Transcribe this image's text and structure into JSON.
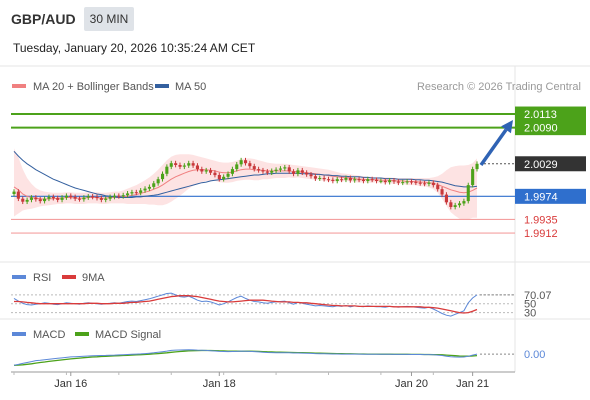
{
  "header": {
    "symbol": "GBP/AUD",
    "timeframe": "30 MIN",
    "datetime": "Tuesday, January 20, 2026 10:35:24 AM CET"
  },
  "legend": {
    "ma20_label": "MA 20 + Bollinger Bands",
    "ma50_label": "MA 50",
    "credit": "Research © 2026 Trading Central",
    "rsi_label": "RSI",
    "rsi_ma_label": "9MA",
    "macd_label": "MACD",
    "macd_signal_label": "MACD Signal"
  },
  "colors": {
    "ma20": "#f08080",
    "bollinger_fill": "#fde0e0",
    "ma50": "#34609f",
    "resistance": "#4ca21a",
    "support": "#f4a0a0",
    "pivot": "#2f6fcd",
    "arrow": "#2f63b4",
    "current": "#333333",
    "candle_up": "#4ca21a",
    "candle_down": "#c8383b",
    "rsi": "#5c88d8",
    "rsi_ma": "#d93b3b",
    "macd": "#5c88d8",
    "macd_signal": "#4ca21a"
  },
  "chart_data": [
    {
      "type": "candlestick",
      "x_axis": {
        "tick_labels": [
          "Jan 16",
          "Jan 18",
          "Jan 20",
          "Jan 21"
        ]
      },
      "y_range": [
        1.988,
        2.0135
      ],
      "levels": [
        {
          "role": "resistance",
          "value": 2.0113,
          "label": "2.0113"
        },
        {
          "role": "resistance",
          "value": 2.009,
          "label": "2.0090"
        },
        {
          "role": "current",
          "value": 2.0029,
          "label": "2.0029"
        },
        {
          "role": "pivot",
          "value": 1.9974,
          "label": "1.9974"
        },
        {
          "role": "support",
          "value": 1.9935,
          "label": "1.9935"
        },
        {
          "role": "support",
          "value": 1.9912,
          "label": "1.9912"
        }
      ],
      "arrow": {
        "from": 2.0027,
        "to": 2.0103
      },
      "closes": [
        1.9982,
        1.997,
        1.9965,
        1.9968,
        1.9972,
        1.9969,
        1.9966,
        1.997,
        1.9973,
        1.9971,
        1.9968,
        1.9972,
        1.9975,
        1.9973,
        1.997,
        1.9969,
        1.9972,
        1.9974,
        1.9973,
        1.9971,
        1.9968,
        1.997,
        1.9973,
        1.9975,
        1.9974,
        1.9976,
        1.9979,
        1.9981,
        1.998,
        1.9984,
        1.9987,
        1.999,
        1.9996,
        2.0003,
        2.0012,
        2.0024,
        2.003,
        2.0027,
        2.0024,
        2.0026,
        2.003,
        2.0026,
        2.002,
        2.0016,
        2.0018,
        2.0014,
        2.001,
        2.0003,
        2.0007,
        2.0012,
        2.002,
        2.0028,
        2.0035,
        2.003,
        2.0025,
        2.002,
        2.0018,
        2.0016,
        2.0014,
        2.0017,
        2.0019,
        2.0021,
        2.0023,
        2.0016,
        2.0012,
        2.0018,
        2.0014,
        2.0011,
        2.0008,
        2.0004,
        2.0005,
        2.0003,
        2.0002,
        2.0,
        2.0003,
        2.0002,
        2.0005,
        2.0001,
        2.0003,
        2.0002,
        2.0,
        2.0003,
        2.0002,
        2.0,
        2.0,
        1.9998,
        2.0001,
        1.9999,
        1.9997,
        1.9998,
        1.9999,
        1.9998,
        1.9997,
        1.9996,
        1.9995,
        1.9997,
        1.9993,
        1.9986,
        1.9977,
        1.9964,
        1.9956,
        1.9959,
        1.9962,
        1.9966,
        1.9993,
        2.002,
        2.0029
      ],
      "ma20": [
        1.999,
        1.9985,
        1.9978,
        1.9974,
        1.9972,
        1.9971,
        1.997,
        1.9969,
        1.997,
        1.997,
        1.9971,
        1.9971,
        1.9972,
        1.9972,
        1.9971,
        1.9971,
        1.9971,
        1.9972,
        1.9972,
        1.9972,
        1.9971,
        1.9971,
        1.9972,
        1.9972,
        1.9972,
        1.9973,
        1.9974,
        1.9976,
        1.9977,
        1.9979,
        1.9981,
        1.9983,
        1.9986,
        1.9989,
        1.9993,
        1.9998,
        2.0003,
        2.0007,
        2.001,
        2.0013,
        2.0016,
        2.0018,
        2.0019,
        2.0019,
        2.0019,
        2.0018,
        2.0017,
        2.0015,
        2.0014,
        2.0014,
        2.0015,
        2.0017,
        2.0019,
        2.002,
        2.002,
        2.0019,
        2.0018,
        2.0018,
        2.0017,
        2.0017,
        2.0017,
        2.0017,
        2.0017,
        2.0017,
        2.0016,
        2.0016,
        2.0015,
        2.0014,
        2.0013,
        2.0012,
        2.0011,
        2.001,
        2.0009,
        2.0008,
        2.0007,
        2.0006,
        2.0006,
        2.0005,
        2.0004,
        2.0003,
        2.0003,
        2.0002,
        2.0002,
        2.0002,
        2.0001,
        2.0001,
        2.0001,
        2.0,
        2.0,
        2.0,
        1.9999,
        1.9999,
        1.9999,
        1.9998,
        1.9998,
        1.9997,
        1.9996,
        1.9994,
        1.9991,
        1.9988,
        1.9985,
        1.9983,
        1.9981,
        1.998,
        1.9981,
        1.9984,
        1.9988
      ],
      "bollinger_upper": [
        2.0055,
        2.004,
        2.002,
        2.0005,
        1.9995,
        1.9988,
        1.9984,
        1.9982,
        1.9981,
        1.998,
        1.998,
        1.998,
        1.9981,
        1.9981,
        1.998,
        1.998,
        1.998,
        1.9981,
        1.9981,
        1.9981,
        1.998,
        1.998,
        1.9981,
        1.9982,
        1.9982,
        1.9984,
        1.9987,
        1.999,
        1.9993,
        1.9997,
        2.0001,
        2.0006,
        2.0012,
        2.0019,
        2.0027,
        2.0035,
        2.0041,
        2.0044,
        2.0045,
        2.0045,
        2.0045,
        2.0044,
        2.0042,
        2.004,
        2.0038,
        2.0036,
        2.0034,
        2.0032,
        2.0031,
        2.0031,
        2.0032,
        2.0034,
        2.0037,
        2.0038,
        2.0038,
        2.0037,
        2.0035,
        2.0033,
        2.0031,
        2.003,
        2.0029,
        2.0029,
        2.0029,
        2.0028,
        2.0027,
        2.0026,
        2.0025,
        2.0024,
        2.0023,
        2.0022,
        2.0021,
        2.002,
        2.0019,
        2.0017,
        2.0015,
        2.0013,
        2.0012,
        2.0011,
        2.001,
        2.0009,
        2.0008,
        2.0007,
        2.0007,
        2.0006,
        2.0006,
        2.0006,
        2.0006,
        2.0005,
        2.0005,
        2.0005,
        2.0005,
        2.0005,
        2.0005,
        2.0005,
        2.0005,
        2.0005,
        2.0006,
        2.0008,
        2.0012,
        2.0018,
        2.0023,
        2.0025,
        2.0026,
        2.0026,
        2.0027,
        2.003,
        2.0038
      ],
      "bollinger_lower": [
        1.994,
        1.9945,
        1.995,
        1.9952,
        1.9953,
        1.9955,
        1.9957,
        1.9958,
        1.9959,
        1.996,
        1.9961,
        1.9961,
        1.9962,
        1.9962,
        1.9961,
        1.9961,
        1.9961,
        1.9962,
        1.9962,
        1.9962,
        1.9961,
        1.9961,
        1.9962,
        1.9962,
        1.9962,
        1.9962,
        1.9961,
        1.9961,
        1.9961,
        1.9961,
        1.9961,
        1.996,
        1.996,
        1.9959,
        1.9959,
        1.9961,
        1.9965,
        1.997,
        1.9975,
        1.9981,
        1.9987,
        1.9992,
        1.9996,
        1.9998,
        2.0,
        2.0,
        2.0,
        1.9998,
        1.9997,
        1.9997,
        1.9998,
        2.0,
        2.0001,
        2.0002,
        2.0002,
        2.0001,
        2.0001,
        2.0003,
        2.0003,
        2.0004,
        2.0005,
        2.0005,
        2.0005,
        2.0006,
        2.0005,
        2.0006,
        2.0005,
        2.0004,
        2.0003,
        2.0002,
        2.0001,
        2.0,
        1.9999,
        1.9999,
        1.9999,
        1.9999,
        2.0,
        1.9999,
        1.9998,
        1.9997,
        1.9998,
        1.9997,
        1.9997,
        1.9998,
        1.9996,
        1.9996,
        1.9996,
        1.9995,
        1.9995,
        1.9995,
        1.9993,
        1.9993,
        1.9993,
        1.9991,
        1.9991,
        1.9989,
        1.9986,
        1.998,
        1.997,
        1.9958,
        1.9947,
        1.9941,
        1.9936,
        1.9934,
        1.9935,
        1.9938,
        1.9938
      ],
      "ma50": [
        2.005,
        2.0042,
        2.0035,
        2.0029,
        2.0024,
        2.0019,
        2.0015,
        2.0011,
        2.0007,
        2.0003,
        2.0,
        1.9997,
        1.9994,
        1.9991,
        1.9988,
        1.9986,
        1.9984,
        1.9982,
        1.998,
        1.9978,
        1.9977,
        1.9975,
        1.9974,
        1.9973,
        1.9972,
        1.9972,
        1.9972,
        1.9972,
        1.9973,
        1.9973,
        1.9974,
        1.9975,
        1.9976,
        1.9977,
        1.9979,
        1.9981,
        1.9983,
        1.9985,
        1.9987,
        1.9989,
        1.9991,
        1.9993,
        1.9995,
        1.9997,
        1.9998,
        2.0,
        2.0001,
        2.0002,
        2.0003,
        2.0004,
        2.0005,
        2.0006,
        2.0007,
        2.0008,
        2.0009,
        2.001,
        2.001,
        2.0011,
        2.0012,
        2.0012,
        2.0013,
        2.0013,
        2.0013,
        2.0013,
        2.0013,
        2.0013,
        2.0012,
        2.0012,
        2.0012,
        2.0011,
        2.0011,
        2.001,
        2.001,
        2.0009,
        2.0009,
        2.0008,
        2.0008,
        2.0007,
        2.0007,
        2.0007,
        2.0006,
        2.0006,
        2.0005,
        2.0005,
        2.0005,
        2.0004,
        2.0004,
        2.0004,
        2.0003,
        2.0003,
        2.0003,
        2.0003,
        2.0002,
        2.0002,
        2.0001,
        2.0001,
        2.0,
        1.9999,
        1.9998,
        1.9996,
        1.9994,
        1.9992,
        1.9991,
        1.999,
        1.999,
        1.999,
        1.9991
      ]
    },
    {
      "type": "line",
      "name": "RSI",
      "y_range": [
        20,
        90
      ],
      "tick_labels": [
        "70.07",
        "50",
        "30"
      ],
      "reference_lines": [
        70,
        50,
        30
      ],
      "rsi": [
        62,
        56,
        51,
        48,
        47,
        49,
        50,
        52,
        51,
        49,
        48,
        50,
        52,
        51,
        50,
        49,
        51,
        52,
        51,
        50,
        49,
        50,
        51,
        52,
        51,
        53,
        55,
        56,
        55,
        57,
        59,
        61,
        64,
        67,
        70,
        73,
        74,
        70,
        66,
        65,
        67,
        63,
        58,
        55,
        56,
        54,
        51,
        47,
        50,
        54,
        59,
        64,
        67,
        62,
        58,
        55,
        54,
        52,
        51,
        53,
        54,
        55,
        56,
        52,
        49,
        53,
        51,
        49,
        47,
        45,
        46,
        45,
        44,
        43,
        45,
        44,
        46,
        43,
        45,
        44,
        43,
        45,
        44,
        43,
        43,
        42,
        44,
        43,
        42,
        43,
        44,
        43,
        42,
        41,
        40,
        42,
        38,
        33,
        28,
        24,
        22,
        26,
        30,
        34,
        52,
        63,
        70
      ],
      "ma9": [
        55,
        55,
        54,
        53,
        52,
        51,
        50,
        50,
        50,
        50,
        50,
        50,
        50,
        50,
        50,
        50,
        50,
        51,
        51,
        51,
        50,
        50,
        50,
        51,
        51,
        51,
        52,
        53,
        53,
        54,
        55,
        56,
        58,
        60,
        62,
        64,
        66,
        67,
        68,
        68,
        68,
        67,
        66,
        64,
        62,
        60,
        58,
        56,
        55,
        54,
        54,
        55,
        56,
        57,
        58,
        58,
        58,
        58,
        57,
        56,
        55,
        54,
        54,
        54,
        53,
        53,
        52,
        52,
        51,
        50,
        49,
        48,
        47,
        46,
        46,
        45,
        45,
        45,
        45,
        44,
        44,
        44,
        44,
        44,
        44,
        44,
        44,
        43,
        43,
        43,
        43,
        43,
        43,
        43,
        42,
        42,
        41,
        40,
        38,
        36,
        34,
        32,
        30,
        29,
        30,
        33,
        37
      ]
    },
    {
      "type": "line",
      "name": "MACD",
      "y_range": [
        -0.0016,
        0.0012
      ],
      "tick_labels": [
        "0.00"
      ],
      "macd": [
        -0.0012,
        -0.0011,
        -0.001,
        -0.0009,
        -0.0008,
        -0.0007,
        -0.00065,
        -0.0006,
        -0.00055,
        -0.0005,
        -0.00045,
        -0.0004,
        -0.00035,
        -0.0003,
        -0.00028,
        -0.00025,
        -0.00022,
        -0.0002,
        -0.00018,
        -0.00016,
        -0.00015,
        -0.00013,
        -0.00011,
        -0.0001,
        -8e-05,
        -6e-05,
        -4e-05,
        -2e-05,
        0.0,
        3e-05,
        6e-05,
        0.0001,
        0.00015,
        0.0002,
        0.00026,
        0.00033,
        0.0004,
        0.00043,
        0.00045,
        0.00046,
        0.00047,
        0.00046,
        0.00044,
        0.00042,
        0.0004,
        0.00037,
        0.00034,
        0.0003,
        0.00028,
        0.00027,
        0.00028,
        0.0003,
        0.00033,
        0.00032,
        0.0003,
        0.00027,
        0.00024,
        0.00021,
        0.00018,
        0.00017,
        0.00016,
        0.00016,
        0.00016,
        0.00014,
        0.00012,
        0.00012,
        0.00011,
        0.0001,
        8e-05,
        6e-05,
        5e-05,
        4e-05,
        3e-05,
        2e-05,
        2e-05,
        1e-05,
        1e-05,
        0.0,
        0.0,
        0.0,
        -1e-05,
        -1e-05,
        -1e-05,
        -2e-05,
        -2e-05,
        -2e-05,
        -2e-05,
        -3e-05,
        -3e-05,
        -3e-05,
        -3e-05,
        -4e-05,
        -4e-05,
        -4e-05,
        -5e-05,
        -5e-05,
        -7e-05,
        -0.0001,
        -0.00015,
        -0.00022,
        -0.00028,
        -0.00031,
        -0.00032,
        -0.00031,
        -0.00022,
        -0.0001,
        0.0
      ]
    }
  ]
}
